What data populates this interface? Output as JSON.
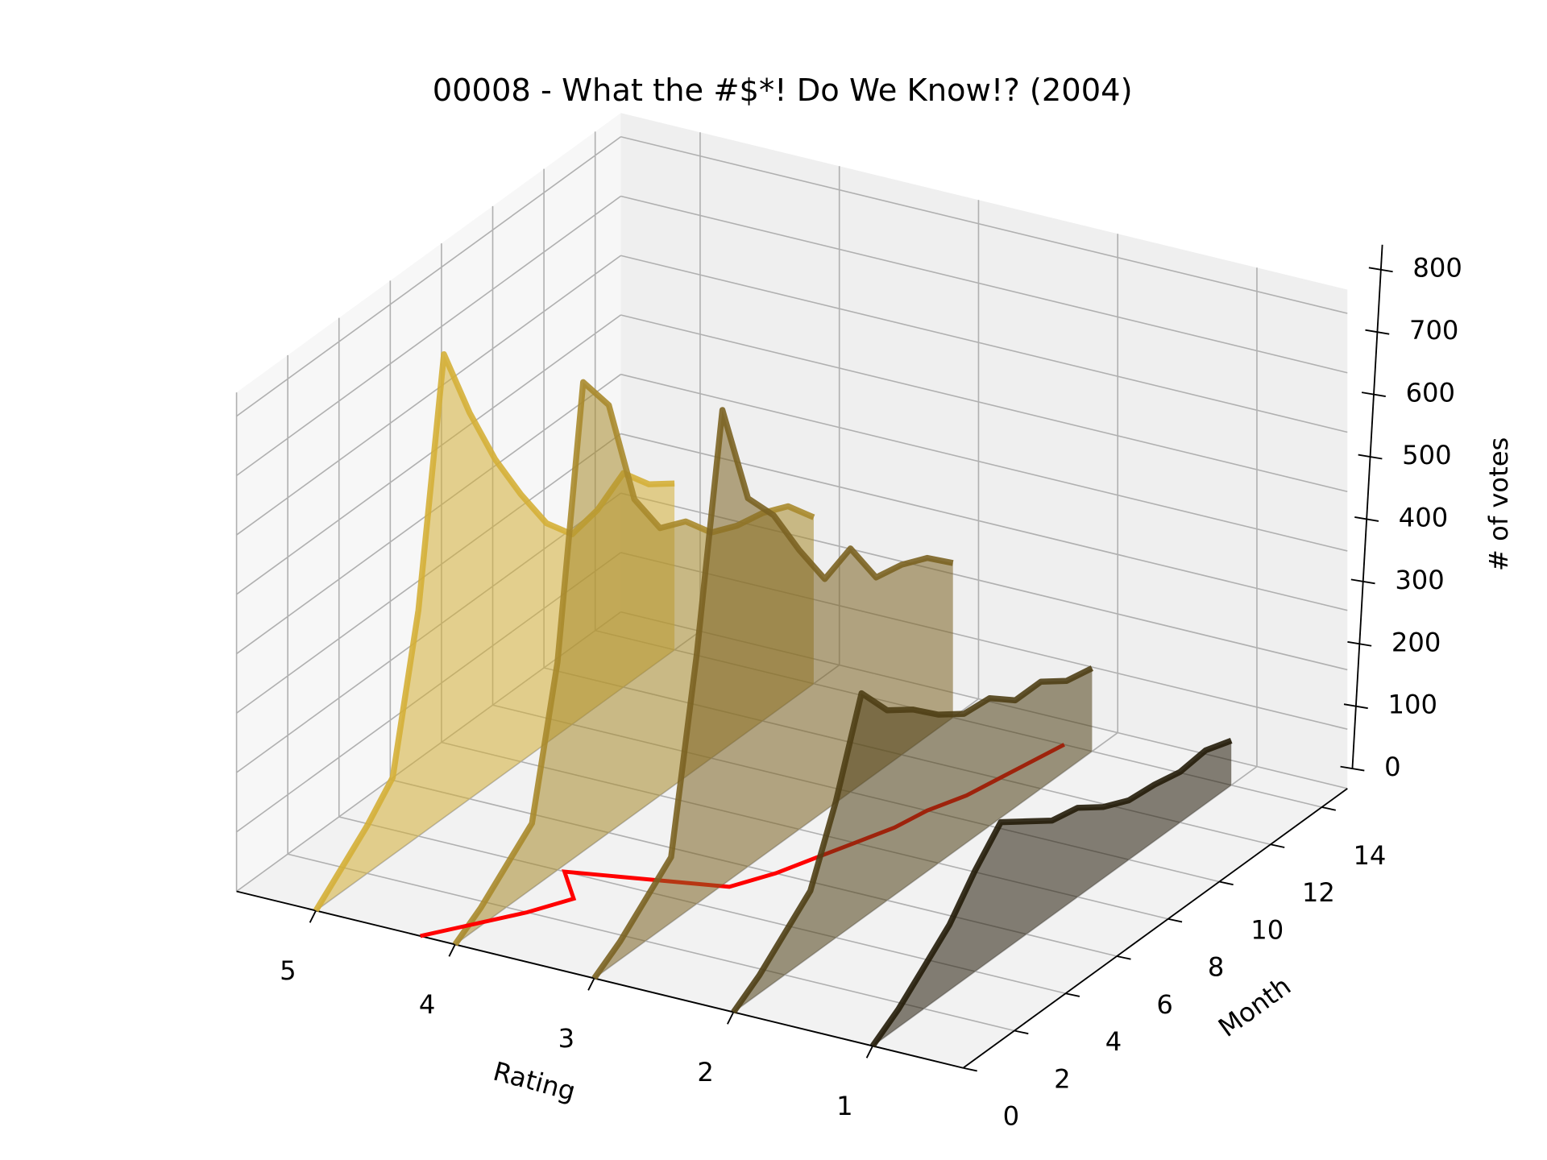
{
  "chart_data": {
    "type": "line3d",
    "title": "00008 - What the #$*! Do We Know!? (2004)",
    "xlabel": "Rating",
    "ylabel": "Month",
    "zlabel": "# of votes",
    "x": [
      0,
      1,
      2,
      3,
      4,
      5,
      6,
      7,
      8,
      9,
      10,
      11,
      12,
      13,
      14
    ],
    "series": [
      {
        "rating": 5,
        "color": "#d4af37",
        "values": [
          0,
          40,
          80,
          130,
          380,
          780,
          650,
          540,
          450,
          370,
          320,
          330,
          360,
          310,
          280
        ]
      },
      {
        "rating": 4,
        "color": "#a88a2c",
        "values": [
          0,
          30,
          70,
          110,
          350,
          790,
          720,
          530,
          450,
          430,
          380,
          360,
          350,
          330,
          280
        ]
      },
      {
        "rating": 3,
        "color": "#7b6322",
        "values": [
          0,
          30,
          70,
          110,
          420,
          800,
          620,
          560,
          470,
          390,
          410,
          330,
          320,
          300,
          260
        ]
      },
      {
        "rating": 2,
        "color": "#4f3f15",
        "values": [
          0,
          30,
          70,
          110,
          230,
          380,
          320,
          290,
          250,
          220,
          215,
          180,
          180,
          150,
          140
        ]
      },
      {
        "rating": 1,
        "color": "#241c09",
        "values": [
          0,
          30,
          70,
          110,
          170,
          220,
          190,
          160,
          150,
          120,
          100,
          95,
          85,
          90,
          75
        ]
      }
    ],
    "mean_line": {
      "color": "#ff0000",
      "values": [
        4.25,
        4.05,
        3.85,
        3.7,
        3.95,
        2.95,
        2.8,
        2.7,
        2.6,
        2.5,
        2.45,
        2.35,
        2.3,
        2.25,
        2.2
      ]
    },
    "xlim": [
      5.57,
      0.35
    ],
    "xticks": [
      1,
      2,
      3,
      4,
      5
    ],
    "ylim": [
      0,
      15
    ],
    "yticks": [
      0,
      2,
      4,
      6,
      8,
      10,
      12,
      14
    ],
    "zlim": [
      0,
      840
    ],
    "zticks": [
      0,
      100,
      200,
      300,
      400,
      500,
      600,
      700,
      800
    ],
    "grid": true
  }
}
